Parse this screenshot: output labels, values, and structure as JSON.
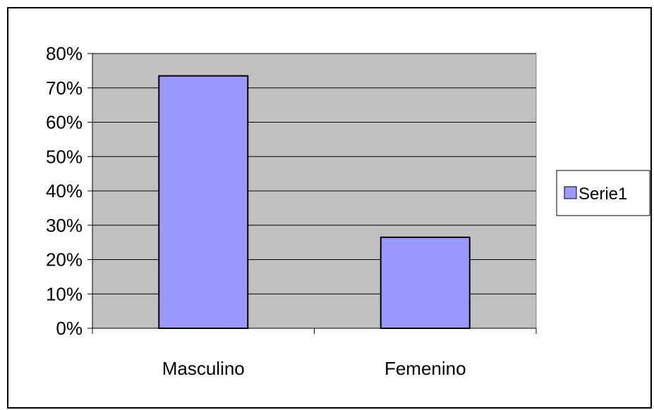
{
  "chart_data": {
    "type": "bar",
    "categories": [
      "Masculino",
      "Femenino"
    ],
    "series": [
      {
        "name": "Serie1",
        "values": [
          0.735,
          0.265
        ],
        "color": "#9999ff"
      }
    ],
    "ylim": [
      0,
      0.8
    ],
    "yticks": [
      0,
      0.1,
      0.2,
      0.3,
      0.4,
      0.5,
      0.6,
      0.7,
      0.8
    ],
    "ytick_labels": [
      "0%",
      "10%",
      "20%",
      "30%",
      "40%",
      "50%",
      "60%",
      "70%",
      "80%"
    ],
    "grid": true,
    "legend": "right",
    "plot_background": "#c0c0c0",
    "title": "",
    "xlabel": "",
    "ylabel": ""
  }
}
